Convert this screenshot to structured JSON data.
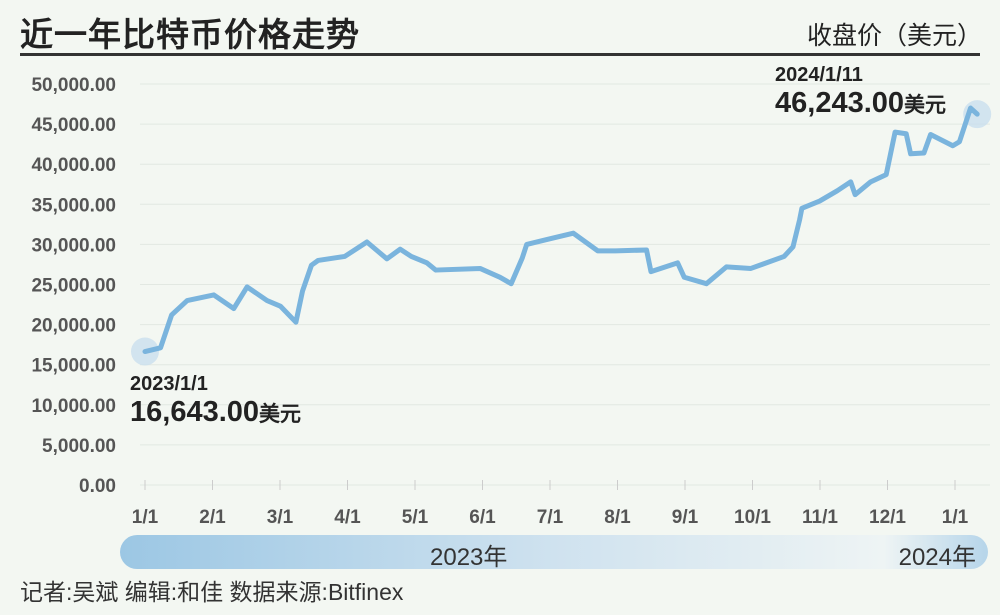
{
  "title": "近一年比特币价格走势",
  "unit_label": "收盘价（美元）",
  "credit": "记者:吴斌  编辑:和佳  数据来源:Bitfinex",
  "year_band": {
    "left": "2023年",
    "right": "2024年"
  },
  "annotations": {
    "start": {
      "date": "2023/1/1",
      "value": "16,643.00",
      "unit": "美元"
    },
    "end": {
      "date": "2024/1/11",
      "value": "46,243.00",
      "unit": "美元"
    }
  },
  "colors": {
    "line": "#7ab4dd",
    "background": "#f3f7f2"
  },
  "chart_data": {
    "type": "line",
    "ylim": [
      0,
      50000
    ],
    "y_ticks": [
      "0.00",
      "5,000.00",
      "10,000.00",
      "15,000.00",
      "20,000.00",
      "25,000.00",
      "30,000.00",
      "35,000.00",
      "40,000.00",
      "45,000.00",
      "50,000.00"
    ],
    "x_ticks": [
      "1/1",
      "2/1",
      "3/1",
      "4/1",
      "5/1",
      "6/1",
      "7/1",
      "8/1",
      "9/1",
      "10/1",
      "11/1",
      "12/1",
      "1/1"
    ],
    "grid": true,
    "series": [
      {
        "points": [
          [
            "2023-01-01",
            16643
          ],
          [
            "2023-01-08",
            17100
          ],
          [
            "2023-01-13",
            21200
          ],
          [
            "2023-01-20",
            23000
          ],
          [
            "2023-02-01",
            23700
          ],
          [
            "2023-02-10",
            22000
          ],
          [
            "2023-02-16",
            24700
          ],
          [
            "2023-02-25",
            23000
          ],
          [
            "2023-03-03",
            22300
          ],
          [
            "2023-03-10",
            20300
          ],
          [
            "2023-03-13",
            24200
          ],
          [
            "2023-03-17",
            27400
          ],
          [
            "2023-03-20",
            28000
          ],
          [
            "2023-04-01",
            28500
          ],
          [
            "2023-04-11",
            30300
          ],
          [
            "2023-04-20",
            28200
          ],
          [
            "2023-04-26",
            29400
          ],
          [
            "2023-05-01",
            28500
          ],
          [
            "2023-05-08",
            27700
          ],
          [
            "2023-05-12",
            26800
          ],
          [
            "2023-06-01",
            27000
          ],
          [
            "2023-06-10",
            25900
          ],
          [
            "2023-06-15",
            25100
          ],
          [
            "2023-06-20",
            28300
          ],
          [
            "2023-06-22",
            30000
          ],
          [
            "2023-07-01",
            30600
          ],
          [
            "2023-07-13",
            31400
          ],
          [
            "2023-07-24",
            29200
          ],
          [
            "2023-08-01",
            29200
          ],
          [
            "2023-08-15",
            29300
          ],
          [
            "2023-08-17",
            26600
          ],
          [
            "2023-08-29",
            27700
          ],
          [
            "2023-09-01",
            25900
          ],
          [
            "2023-09-11",
            25100
          ],
          [
            "2023-09-20",
            27200
          ],
          [
            "2023-10-01",
            27000
          ],
          [
            "2023-10-16",
            28500
          ],
          [
            "2023-10-20",
            29700
          ],
          [
            "2023-10-23",
            33100
          ],
          [
            "2023-10-24",
            34500
          ],
          [
            "2023-11-01",
            35400
          ],
          [
            "2023-11-09",
            36700
          ],
          [
            "2023-11-15",
            37800
          ],
          [
            "2023-11-17",
            36200
          ],
          [
            "2023-11-24",
            37800
          ],
          [
            "2023-12-01",
            38700
          ],
          [
            "2023-12-05",
            44000
          ],
          [
            "2023-12-10",
            43800
          ],
          [
            "2023-12-12",
            41300
          ],
          [
            "2023-12-18",
            41400
          ],
          [
            "2023-12-21",
            43700
          ],
          [
            "2023-12-31",
            42300
          ],
          [
            "2024-01-03",
            42800
          ],
          [
            "2024-01-08",
            47000
          ],
          [
            "2024-01-11",
            46243
          ]
        ]
      }
    ]
  }
}
